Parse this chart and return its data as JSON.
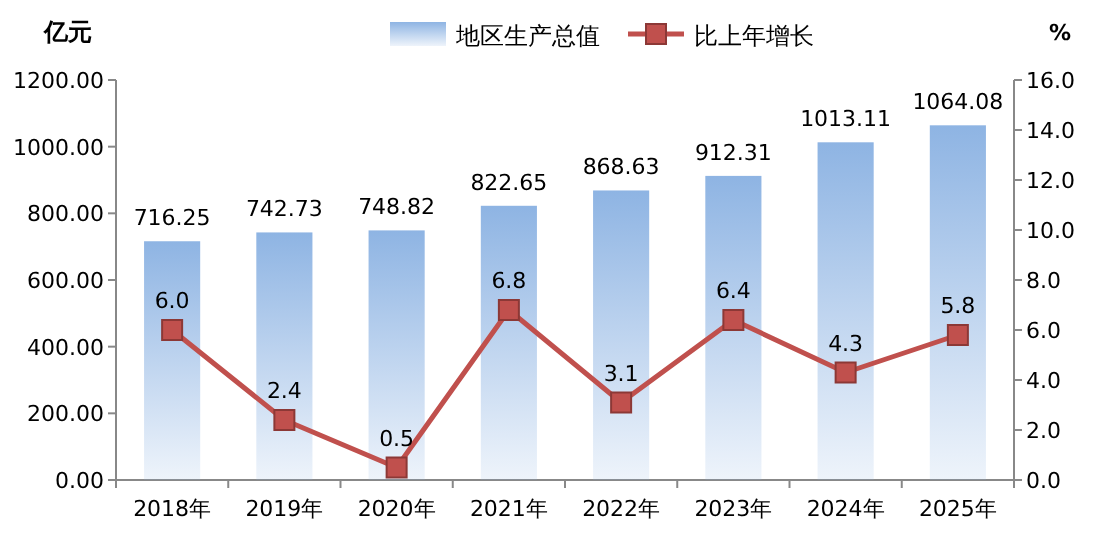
{
  "chart_data": {
    "type": "bar",
    "ylabel": "亿元",
    "y2label": "%",
    "categories": [
      "2018年",
      "2019年",
      "2020年",
      "2021年",
      "2022年",
      "2023年",
      "2024年",
      "2025年"
    ],
    "series": [
      {
        "name": "地区生产总值",
        "color": "#8eb4e3",
        "values": [
          716.25,
          742.73,
          748.82,
          822.65,
          868.63,
          912.31,
          1013.11,
          1064.08
        ],
        "value_labels": [
          "716.25",
          "742.73",
          "748.82",
          "822.65",
          "868.63",
          "912.31",
          "1013.11",
          "1064.08"
        ]
      },
      {
        "name": "比上年增长",
        "type": "line",
        "axis": "y2",
        "color": "#c0504d",
        "marker": "square",
        "values": [
          6.0,
          2.4,
          0.5,
          6.8,
          3.1,
          6.4,
          4.3,
          5.8
        ],
        "value_labels": [
          "6.0",
          "2.4",
          "0.5",
          "6.8",
          "3.1",
          "6.4",
          "4.3",
          "5.8"
        ]
      }
    ],
    "ylim": [
      0,
      1200
    ],
    "yticks": [
      {
        "value": 0,
        "label": "0.00"
      },
      {
        "value": 200,
        "label": "200.00"
      },
      {
        "value": 400,
        "label": "400.00"
      },
      {
        "value": 600,
        "label": "600.00"
      },
      {
        "value": 800,
        "label": "800.00"
      },
      {
        "value": 1000,
        "label": "1000.00"
      },
      {
        "value": 1200,
        "label": "1200.00"
      }
    ],
    "y2lim": [
      0,
      16
    ],
    "y2ticks": [
      {
        "value": 0,
        "label": "0.0"
      },
      {
        "value": 2,
        "label": "2.0"
      },
      {
        "value": 4,
        "label": "4.0"
      },
      {
        "value": 6,
        "label": "6.0"
      },
      {
        "value": 8,
        "label": "8.0"
      },
      {
        "value": 10,
        "label": "10.0"
      },
      {
        "value": 12,
        "label": "12.0"
      },
      {
        "value": 14,
        "label": "14.0"
      },
      {
        "value": 16,
        "label": "16.0"
      }
    ],
    "legend": "top"
  }
}
